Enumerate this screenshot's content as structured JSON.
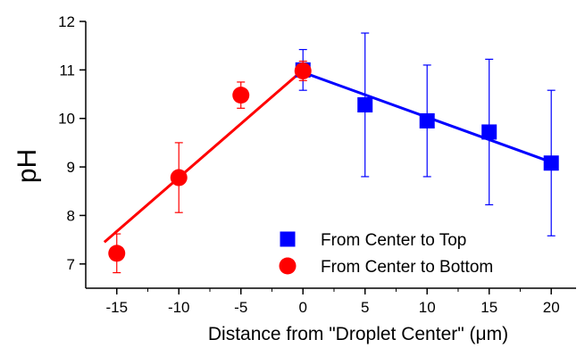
{
  "chart_data": {
    "type": "scatter",
    "xlabel": "Distance from \"Droplet Center\" (μm)",
    "ylabel": "pH",
    "xlim": [
      -17.5,
      22
    ],
    "ylim": [
      6.5,
      12
    ],
    "xticks": [
      -15,
      -10,
      -5,
      0,
      5,
      10,
      15,
      20
    ],
    "yticks": [
      7,
      8,
      9,
      10,
      11,
      12
    ],
    "legend_position": "bottom-right",
    "series": [
      {
        "name": "From Center to Top",
        "marker": "square",
        "color": "#0000ff",
        "x": [
          0,
          5,
          10,
          15,
          20
        ],
        "y": [
          11.0,
          10.28,
          9.95,
          9.72,
          9.08
        ],
        "yerr": [
          0.42,
          1.48,
          1.15,
          1.5,
          1.5
        ]
      },
      {
        "name": "From Center to Bottom",
        "marker": "circle",
        "color": "#ff0000",
        "x": [
          -15,
          -10,
          -5,
          0
        ],
        "y": [
          7.22,
          8.78,
          10.48,
          10.98
        ],
        "yerr": [
          0.4,
          0.72,
          0.27,
          0.2
        ]
      }
    ],
    "fit_lines": [
      {
        "color": "#0000ff",
        "x": [
          0,
          20
        ],
        "y": [
          10.95,
          9.1
        ]
      },
      {
        "color": "#ff0000",
        "x": [
          -16,
          0
        ],
        "y": [
          7.45,
          11.0
        ]
      }
    ]
  }
}
